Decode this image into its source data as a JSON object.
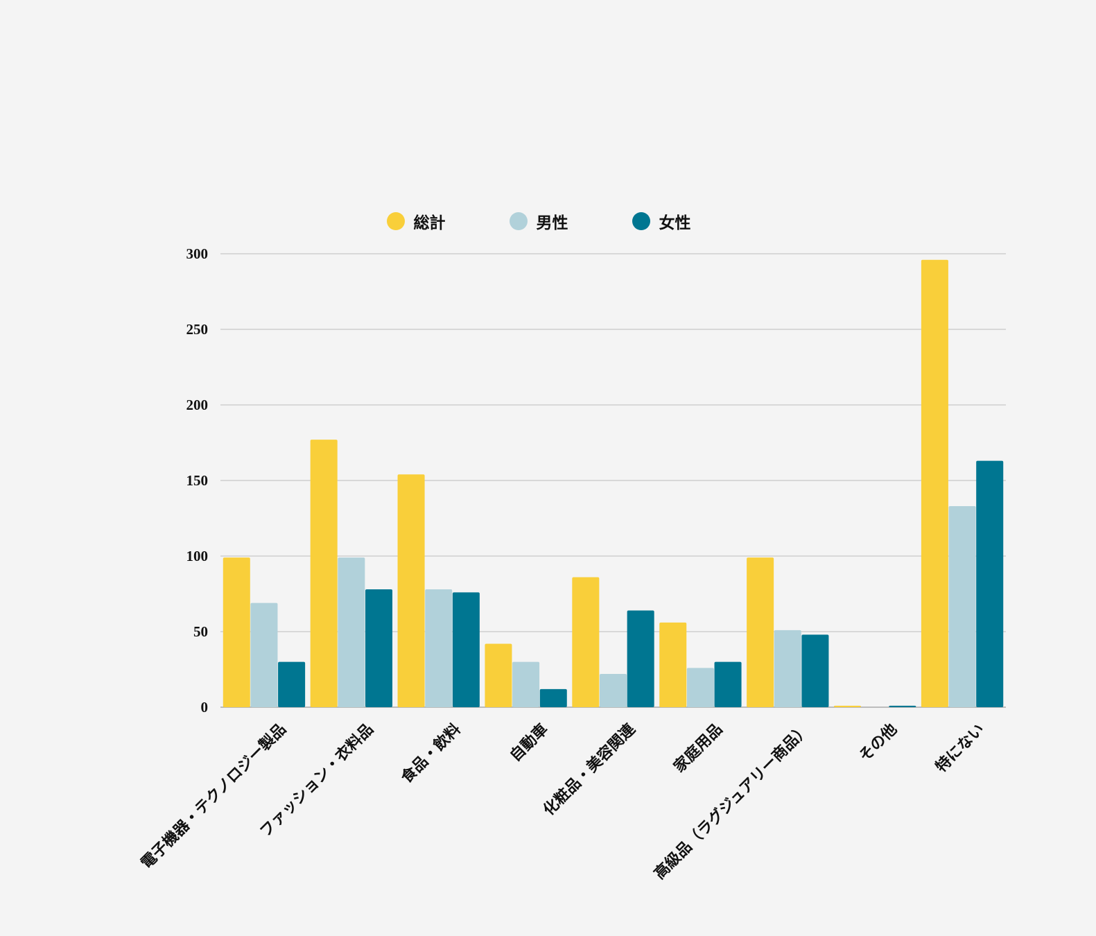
{
  "chart_data": {
    "type": "bar",
    "title": "",
    "xlabel": "",
    "ylabel": "",
    "ylim": [
      0,
      300
    ],
    "yticks": [
      0,
      50,
      100,
      150,
      200,
      250,
      300
    ],
    "grid": true,
    "legend_position": "top-center",
    "categories": [
      "電子機器・テクノロジー製品",
      "ファッション・衣料品",
      "食品・飲料",
      "自動車",
      "化粧品・美容関連",
      "家庭用品",
      "高級品（ラグジュアリー商品）",
      "その他",
      "特にない"
    ],
    "series": [
      {
        "name": "総計",
        "color": "#f9cf3a",
        "values": [
          99,
          177,
          154,
          42,
          86,
          56,
          99,
          1,
          296
        ]
      },
      {
        "name": "男性",
        "color": "#b1d1da",
        "values": [
          69,
          99,
          78,
          30,
          22,
          26,
          51,
          0,
          133
        ]
      },
      {
        "name": "女性",
        "color": "#007691",
        "values": [
          30,
          78,
          76,
          12,
          64,
          30,
          48,
          1,
          163
        ]
      }
    ]
  }
}
